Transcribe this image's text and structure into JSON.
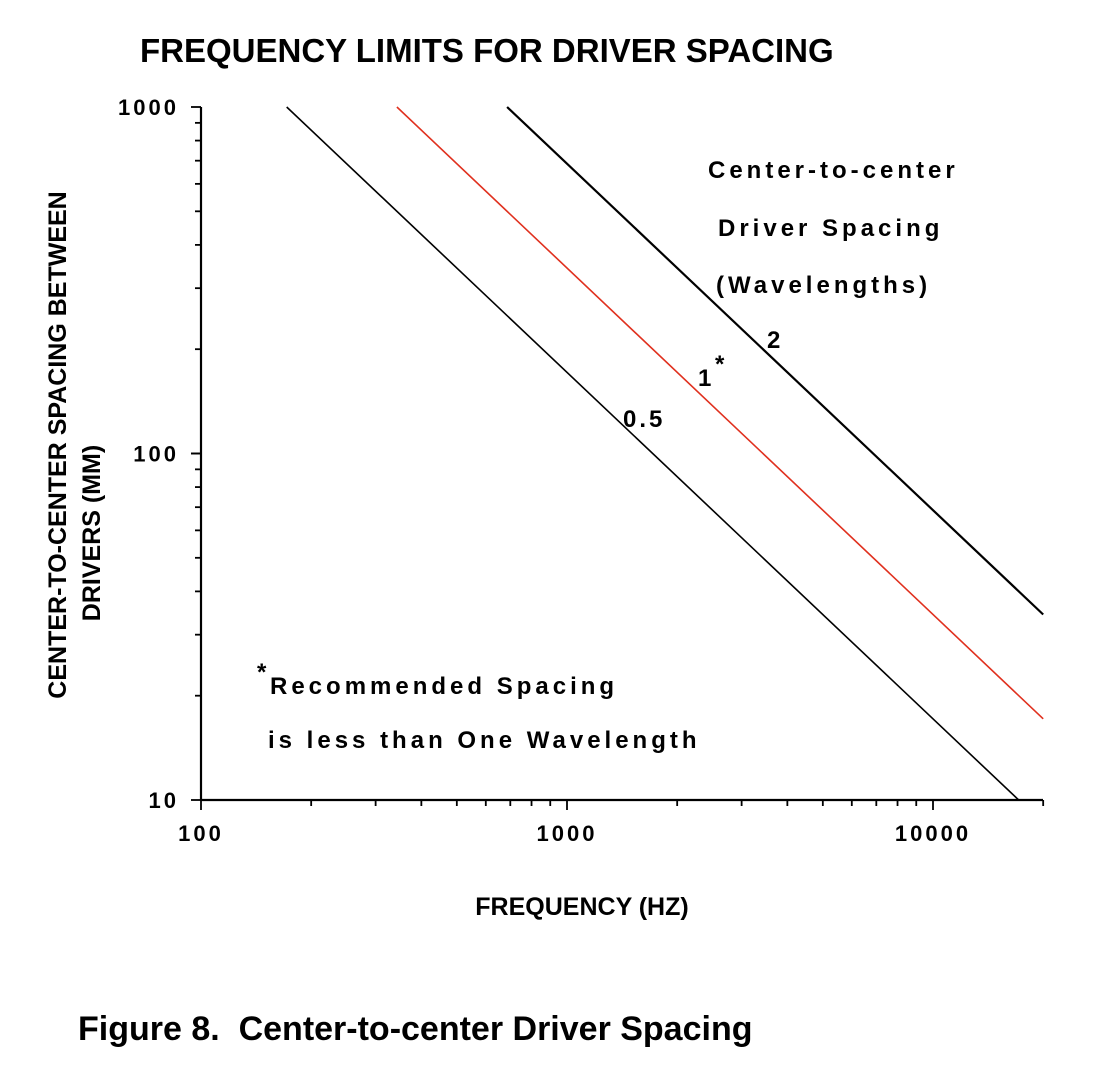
{
  "chart_data": {
    "type": "line",
    "title": "FREQUENCY LIMITS FOR DRIVER SPACING",
    "xlabel": "FREQUENCY (HZ)",
    "ylabel_lines": [
      "CENTER-TO-CENTER SPACING BETWEEN",
      "DRIVERS (MM)"
    ],
    "x_scale": "log",
    "y_scale": "log",
    "xlim": [
      100,
      20000
    ],
    "ylim": [
      10,
      1000
    ],
    "x_ticks": [
      100,
      1000,
      10000
    ],
    "x_tick_labels": [
      "100",
      "1000",
      "10000"
    ],
    "y_ticks": [
      10,
      100,
      1000
    ],
    "y_tick_labels": [
      "10",
      "100",
      "1000"
    ],
    "grid": false,
    "legend_title_lines": [
      "Center-to-center",
      "Driver Spacing",
      "(Wavelengths)"
    ],
    "series": [
      {
        "name": "0.5",
        "color": "#000000",
        "x": [
          171.5,
          17150
        ],
        "y": [
          1000,
          10
        ]
      },
      {
        "name": "1",
        "marker": "*",
        "color": "#e0301e",
        "x": [
          343,
          20000
        ],
        "y": [
          1000,
          17.15
        ]
      },
      {
        "name": "2",
        "color": "#000000",
        "x": [
          686,
          20000
        ],
        "y": [
          1000,
          34.3
        ]
      }
    ],
    "annotation_lines": [
      "Recommended Spacing",
      "is less than One Wavelength"
    ],
    "annotation_marker": "*"
  },
  "caption": "Figure 8.  Center-to-center Driver Spacing"
}
